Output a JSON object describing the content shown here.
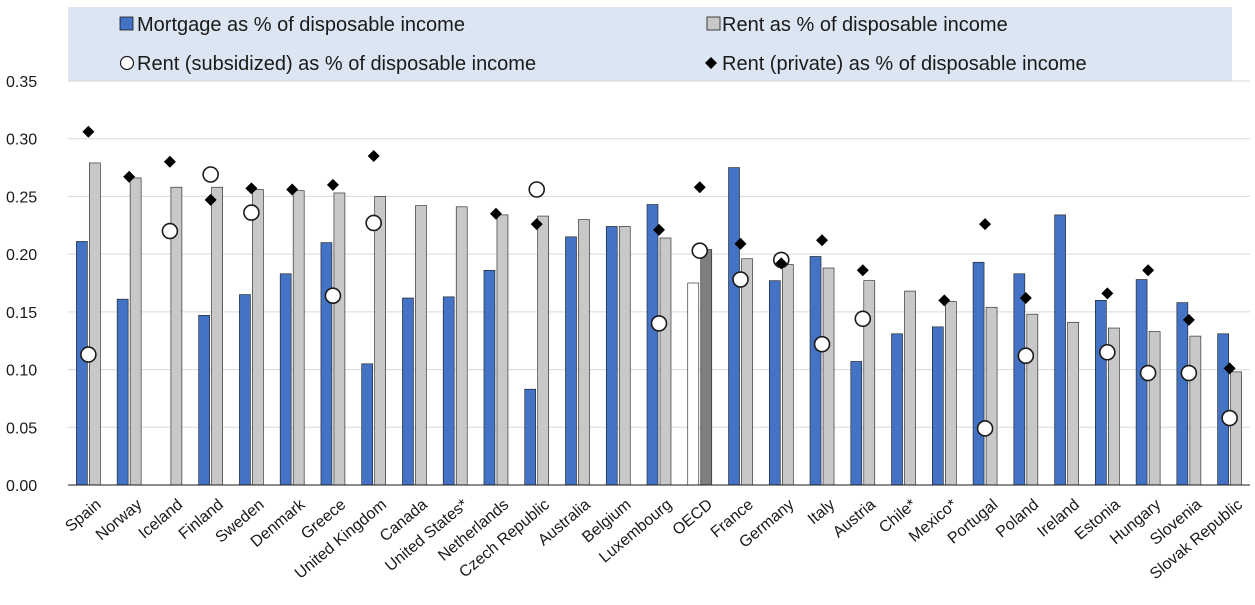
{
  "chart_data": {
    "type": "bar",
    "title": "",
    "xlabel": "",
    "ylabel": "",
    "ylim": [
      0,
      0.35
    ],
    "yticks": [
      "0.00",
      "0.05",
      "0.10",
      "0.15",
      "0.20",
      "0.25",
      "0.30",
      "0.35"
    ],
    "grid": true,
    "legend_position": "top",
    "categories": [
      "Spain",
      "Norway",
      "Iceland",
      "Finland",
      "Sweden",
      "Denmark",
      "Greece",
      "United Kingdom",
      "Canada",
      "United States*",
      "Netherlands",
      "Czech Republic",
      "Australia",
      "Belgium",
      "Luxembourg",
      "OECD",
      "France",
      "Germany",
      "Italy",
      "Austria",
      "Chile*",
      "Mexico*",
      "Portugal",
      "Poland",
      "Ireland",
      "Estonia",
      "Hungary",
      "Slovenia",
      "Slovak Republic"
    ],
    "highlight_category": "OECD",
    "series": [
      {
        "name": "Mortgage as % of disposable income",
        "kind": "bar",
        "color": "#4472c4",
        "highlight_color": "#ffffff",
        "values": [
          0.211,
          0.161,
          null,
          0.147,
          0.165,
          0.183,
          0.21,
          0.105,
          0.162,
          0.163,
          0.186,
          0.083,
          0.215,
          0.224,
          0.243,
          0.175,
          0.275,
          0.177,
          0.198,
          0.107,
          0.131,
          0.137,
          0.193,
          0.183,
          0.234,
          0.16,
          0.178,
          0.158,
          0.131
        ]
      },
      {
        "name": "Rent as % of disposable income",
        "kind": "bar",
        "color": "#c8c8c8",
        "highlight_color": "#7f7f7f",
        "values": [
          0.279,
          0.266,
          0.258,
          0.258,
          0.256,
          0.255,
          0.253,
          0.25,
          0.242,
          0.241,
          0.234,
          0.233,
          0.23,
          0.224,
          0.214,
          0.204,
          0.196,
          0.191,
          0.188,
          0.177,
          0.168,
          0.159,
          0.154,
          0.148,
          0.141,
          0.136,
          0.133,
          0.129,
          0.098
        ]
      },
      {
        "name": "Rent (subsidized) as % of disposable income",
        "kind": "circle",
        "color": "#ffffff",
        "values": [
          0.113,
          null,
          0.22,
          0.269,
          0.236,
          null,
          0.164,
          0.227,
          null,
          null,
          null,
          0.256,
          null,
          null,
          0.14,
          0.203,
          0.178,
          0.195,
          0.122,
          0.144,
          null,
          null,
          0.049,
          0.112,
          null,
          0.115,
          0.097,
          0.097,
          0.058
        ]
      },
      {
        "name": "Rent (private) as % of disposable income",
        "kind": "diamond",
        "color": "#000000",
        "values": [
          0.306,
          0.267,
          0.28,
          0.247,
          0.257,
          0.256,
          0.26,
          0.285,
          null,
          null,
          0.235,
          0.226,
          null,
          null,
          0.221,
          0.258,
          0.209,
          0.192,
          0.212,
          0.186,
          null,
          0.16,
          0.226,
          0.162,
          null,
          0.166,
          0.186,
          0.143,
          0.101
        ]
      }
    ]
  }
}
